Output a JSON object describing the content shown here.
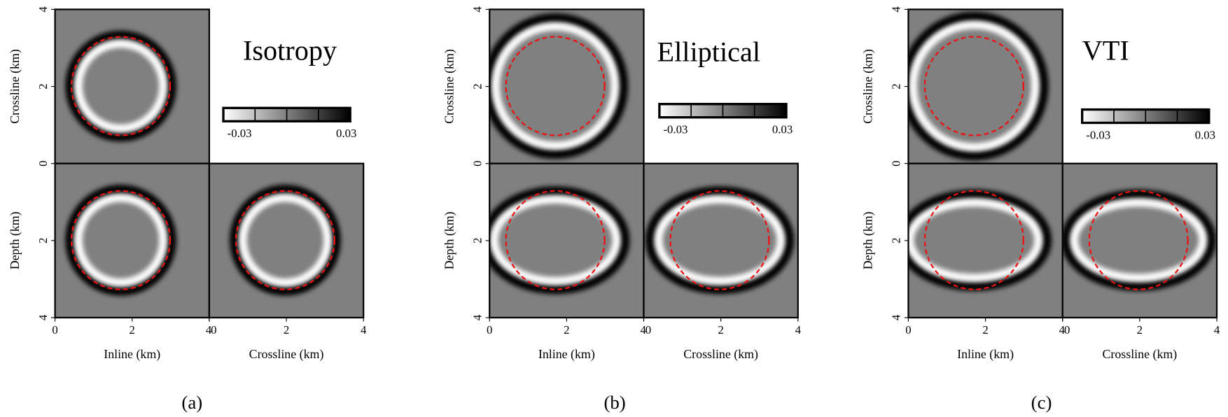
{
  "panels": [
    {
      "title": "Isotropy",
      "label": "(a)",
      "ylabel_top": "Crossline (km)",
      "ylabel_bottom": "Depth (km)",
      "xlabel_left": "Inline (km)",
      "xlabel_right": "Crossline (km)",
      "ticks": [
        0,
        2,
        4
      ],
      "colorbar_ticks": [
        -0.03,
        0.03
      ]
    },
    {
      "title": "Elliptical",
      "label": "(b)",
      "ylabel_top": "Crossline (km)",
      "ylabel_bottom": "Depth (km)",
      "xlabel_left": "Inline (km)",
      "xlabel_right": "Crossline (km)",
      "ticks": [
        0,
        2,
        4
      ],
      "colorbar_ticks": [
        -0.03,
        0.03
      ]
    },
    {
      "title": "VTI",
      "label": "(c)",
      "ylabel_top": "Crossline (km)",
      "ylabel_bottom": "Depth (km)",
      "xlabel_left": "Inline (km)",
      "xlabel_right": "Crossline (km)",
      "ticks": [
        0,
        2,
        4
      ],
      "colorbar_ticks": [
        -0.03,
        0.03
      ]
    }
  ]
}
